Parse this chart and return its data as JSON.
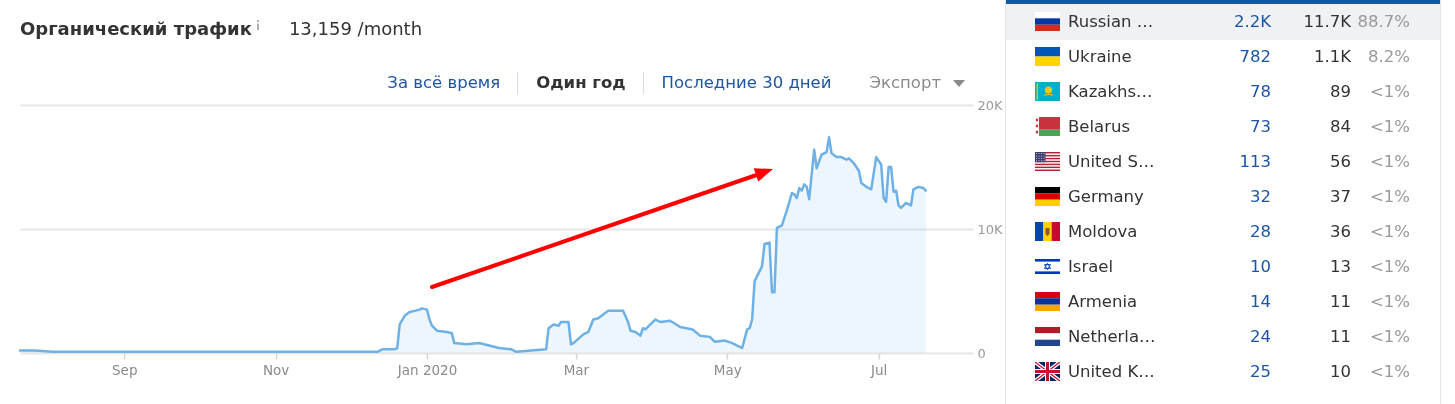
{
  "chart_data": [
    {
      "type": "area",
      "title": "Органический трафик",
      "subtitle": "13,159 /month",
      "annotations": [
        "За всё время",
        "Один год",
        "Последние 30 дней",
        "Экспорт"
      ],
      "xlim": [
        "2019-07-21",
        "2020-08-08"
      ],
      "xticks": [
        {
          "value": "2019-09-01",
          "label": "Sep"
        },
        {
          "value": "2019-11-01",
          "label": "Nov"
        },
        {
          "value": "2020-01-01",
          "label": "Jan 2020"
        },
        {
          "value": "2020-03-01",
          "label": "Mar"
        },
        {
          "value": "2020-05-01",
          "label": "May"
        },
        {
          "value": "2020-07-01",
          "label": "Jul"
        }
      ],
      "ylim": [
        0,
        20000
      ],
      "yticks": [
        0,
        {
          "value": 10000,
          "label": "10K"
        },
        {
          "value": 20000,
          "label": "20K"
        }
      ],
      "grid": "y",
      "series": [
        {
          "color": "#6eb1e6",
          "x": [
            "2019-07-21",
            "2019-07-27",
            "2019-08-03",
            "2019-12-12",
            "2019-12-14",
            "2019-12-19",
            "2019-12-20",
            "2019-12-21",
            "2019-12-23",
            "2019-12-25",
            "2019-12-27",
            "2019-12-29",
            "2019-12-30",
            "2020-01-01",
            "2020-01-02",
            "2020-01-03",
            "2020-01-05",
            "2020-01-09",
            "2020-01-11",
            "2020-01-12",
            "2020-01-17",
            "2020-01-22",
            "2020-01-26",
            "2020-01-30",
            "2020-02-04",
            "2020-02-06",
            "2020-02-18",
            "2020-02-19",
            "2020-02-21",
            "2020-02-23",
            "2020-02-24",
            "2020-02-27",
            "2020-02-28",
            "2020-02-29",
            "2020-03-04",
            "2020-03-06",
            "2020-03-08",
            "2020-03-10",
            "2020-03-14",
            "2020-03-20",
            "2020-03-22",
            "2020-03-23",
            "2020-03-25",
            "2020-03-27",
            "2020-03-28",
            "2020-03-29",
            "2020-03-31",
            "2020-04-02",
            "2020-04-04",
            "2020-04-08",
            "2020-04-12",
            "2020-04-17",
            "2020-04-20",
            "2020-04-24",
            "2020-04-26",
            "2020-04-30",
            "2020-05-03",
            "2020-05-05",
            "2020-05-07",
            "2020-05-09",
            "2020-05-10",
            "2020-05-11",
            "2020-05-12",
            "2020-05-14",
            "2020-05-15",
            "2020-05-16",
            "2020-05-18",
            "2020-05-19",
            "2020-05-20",
            "2020-05-21",
            "2020-05-23",
            "2020-05-24",
            "2020-05-25",
            "2020-05-27",
            "2020-05-28",
            "2020-05-29",
            "2020-05-30",
            "2020-05-31",
            "2020-06-01",
            "2020-06-02",
            "2020-06-03",
            "2020-06-05",
            "2020-06-06",
            "2020-06-08",
            "2020-06-10",
            "2020-06-11",
            "2020-06-12",
            "2020-06-14",
            "2020-06-16",
            "2020-06-18",
            "2020-06-19",
            "2020-06-21",
            "2020-06-23",
            "2020-06-24",
            "2020-06-26",
            "2020-06-28",
            "2020-06-30",
            "2020-07-02",
            "2020-07-03",
            "2020-07-04",
            "2020-07-05",
            "2020-07-06",
            "2020-07-07",
            "2020-07-08",
            "2020-07-09",
            "2020-07-10",
            "2020-07-12",
            "2020-07-14",
            "2020-07-15",
            "2020-07-17",
            "2020-07-19",
            "2020-07-20"
          ],
          "values": [
            200,
            200,
            100,
            100,
            300,
            300,
            400,
            2300,
            3000,
            3300,
            3400,
            3500,
            3600,
            3500,
            2700,
            2200,
            1800,
            1700,
            1600,
            800,
            700,
            800,
            600,
            400,
            300,
            100,
            300,
            2000,
            2300,
            2200,
            2500,
            2500,
            700,
            800,
            1500,
            1700,
            2700,
            2800,
            3400,
            3400,
            2500,
            1800,
            1700,
            1400,
            2000,
            1900,
            2300,
            2700,
            2500,
            2600,
            2100,
            1900,
            1400,
            1300,
            900,
            1000,
            800,
            600,
            400,
            1900,
            2000,
            2700,
            5800,
            6600,
            7000,
            8800,
            8900,
            4900,
            4900,
            10100,
            10300,
            10900,
            11500,
            12900,
            12800,
            12500,
            13300,
            13100,
            13600,
            13400,
            12400,
            16400,
            14900,
            16000,
            16200,
            17400,
            16100,
            15800,
            15800,
            15600,
            15700,
            15300,
            14700,
            13700,
            13400,
            13200,
            15800,
            15200,
            12500,
            12200,
            15000,
            15000,
            13000,
            13100,
            11900,
            11700,
            12100,
            11900,
            13200,
            13400,
            13300,
            13100
          ]
        }
      ]
    },
    {
      "type": "other",
      "categories": [
        "Russian …",
        "Ukraine",
        "Kazakhs…",
        "Belarus",
        "United S…",
        "Germany",
        "Moldova",
        "Israel",
        "Armenia",
        "Netherla…",
        "United K…"
      ],
      "series": [
        {
          "values": [
            2200,
            782,
            78,
            73,
            113,
            32,
            28,
            10,
            14,
            24,
            25
          ],
          "value_labels": [
            "2.2K",
            "782",
            "78",
            "73",
            "113",
            "32",
            "28",
            "10",
            "14",
            "24",
            "25"
          ]
        },
        {
          "values": [
            11700,
            1100,
            89,
            84,
            56,
            37,
            36,
            13,
            11,
            11,
            10
          ],
          "value_labels": [
            "11.7K",
            "1.1K",
            "89",
            "84",
            "56",
            "37",
            "36",
            "13",
            "11",
            "11",
            "10"
          ]
        },
        {
          "values": [
            88.7,
            8.2,
            null,
            null,
            null,
            null,
            null,
            null,
            null,
            null,
            null
          ],
          "value_labels": [
            "88.7%",
            "8.2%",
            "<1%",
            "<1%",
            "<1%",
            "<1%",
            "<1%",
            "<1%",
            "<1%",
            "<1%",
            "<1%"
          ]
        }
      ]
    }
  ]
}
